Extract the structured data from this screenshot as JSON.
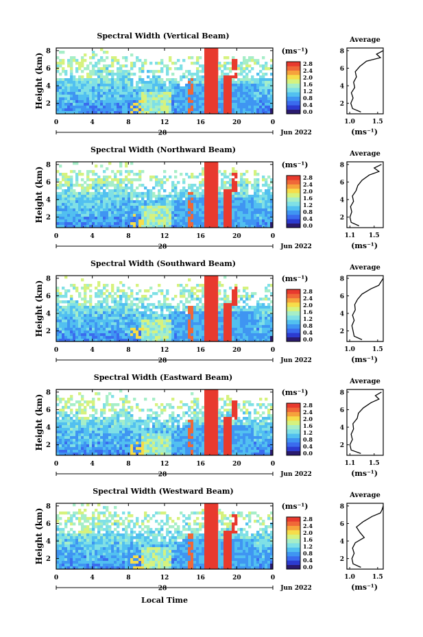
{
  "figure": {
    "xlabel": "Local Time",
    "date_label": "Jun 2022",
    "day_label": "28",
    "cbar_unit": "(ms⁻¹)",
    "avg_title": "Average",
    "avg_unit": "(ms⁻¹)",
    "height_label": "Height (km)"
  },
  "palette": [
    "#2a1a6e",
    "#2c3bd0",
    "#3a6bee",
    "#3f95f2",
    "#52c0f0",
    "#7fe0e6",
    "#a6eec8",
    "#d6f27e",
    "#f6dd4a",
    "#f6a23c",
    "#f06838",
    "#e83a2e"
  ],
  "chart_data": [
    {
      "type": "heatmap",
      "title": "Spectral Width (Vertical Beam)",
      "x_ticks": [
        "0",
        "4",
        "8",
        "12",
        "16",
        "20",
        "0"
      ],
      "y_ticks": [
        "2",
        "4",
        "6",
        "8"
      ],
      "xlim": [
        0,
        24
      ],
      "ylim": [
        0.8,
        8.3
      ],
      "colorbar_ticks": [
        "2.8",
        "2.4",
        "2.0",
        "1.6",
        "1.2",
        "0.8",
        "0.4",
        "0.0"
      ],
      "colorbar_range": [
        0.0,
        2.8
      ],
      "average_profile": {
        "title": "Average",
        "x_ticks": [
          "1.0",
          "1.5"
        ],
        "xlim": [
          0.95,
          1.6
        ],
        "height": [
          1.0,
          1.4,
          2.0,
          2.6,
          3.2,
          3.8,
          4.4,
          5.0,
          5.6,
          6.2,
          6.8,
          7.2,
          7.6,
          8.0
        ],
        "width": [
          1.2,
          1.05,
          1.02,
          1.06,
          1.03,
          1.09,
          1.07,
          1.12,
          1.1,
          1.18,
          1.3,
          1.55,
          1.48,
          1.6
        ]
      }
    },
    {
      "type": "heatmap",
      "title": "Spectral Width (Northward Beam)",
      "x_ticks": [
        "0",
        "4",
        "8",
        "12",
        "16",
        "20",
        "0"
      ],
      "y_ticks": [
        "2",
        "4",
        "6",
        "8"
      ],
      "xlim": [
        0,
        24
      ],
      "ylim": [
        0.8,
        8.3
      ],
      "colorbar_ticks": [
        "2.8",
        "2.4",
        "2.0",
        "1.6",
        "1.2",
        "0.8",
        "0.4",
        "0.0"
      ],
      "colorbar_range": [
        0.0,
        2.8
      ],
      "average_profile": {
        "title": "Average",
        "x_ticks": [
          "1.1",
          "1.5"
        ],
        "xlim": [
          1.05,
          1.65
        ],
        "height": [
          1.0,
          1.4,
          2.0,
          2.6,
          3.2,
          3.8,
          4.4,
          5.0,
          5.6,
          6.2,
          6.8,
          7.2,
          7.6,
          8.0
        ],
        "width": [
          1.25,
          1.12,
          1.1,
          1.13,
          1.11,
          1.16,
          1.14,
          1.2,
          1.23,
          1.3,
          1.42,
          1.58,
          1.5,
          1.62
        ]
      }
    },
    {
      "type": "heatmap",
      "title": "Spectral Width (Southward Beam)",
      "x_ticks": [
        "0",
        "4",
        "8",
        "12",
        "16",
        "20",
        "0"
      ],
      "y_ticks": [
        "2",
        "4",
        "6",
        "8"
      ],
      "xlim": [
        0,
        24
      ],
      "ylim": [
        0.8,
        8.3
      ],
      "colorbar_ticks": [
        "2.8",
        "2.4",
        "2.0",
        "1.6",
        "1.2",
        "0.8",
        "0.4",
        "0.0"
      ],
      "colorbar_range": [
        0.0,
        2.8
      ],
      "average_profile": {
        "title": "Average",
        "x_ticks": [
          "1.0",
          "1.5"
        ],
        "xlim": [
          0.95,
          1.6
        ],
        "height": [
          1.0,
          1.4,
          2.0,
          2.6,
          3.2,
          3.8,
          4.4,
          5.0,
          5.6,
          6.2,
          6.8,
          7.2,
          7.6,
          8.0
        ],
        "width": [
          1.22,
          1.08,
          1.06,
          1.04,
          1.08,
          1.05,
          1.1,
          1.09,
          1.14,
          1.22,
          1.38,
          1.52,
          1.56,
          1.6
        ]
      }
    },
    {
      "type": "heatmap",
      "title": "Spectral Width (Eastward Beam)",
      "x_ticks": [
        "0",
        "4",
        "8",
        "12",
        "16",
        "20",
        "0"
      ],
      "y_ticks": [
        "2",
        "4",
        "6",
        "8"
      ],
      "xlim": [
        0,
        24
      ],
      "ylim": [
        0.8,
        8.3
      ],
      "colorbar_ticks": [
        "2.8",
        "2.4",
        "2.0",
        "1.6",
        "1.2",
        "0.8",
        "0.4",
        "0.0"
      ],
      "colorbar_range": [
        0.0,
        2.8
      ],
      "average_profile": {
        "title": "Average",
        "x_ticks": [
          "1.1",
          "1.5"
        ],
        "xlim": [
          1.05,
          1.65
        ],
        "height": [
          1.0,
          1.4,
          2.0,
          2.6,
          3.2,
          3.8,
          4.4,
          5.0,
          5.6,
          6.2,
          6.8,
          7.2,
          7.6,
          8.0
        ],
        "width": [
          1.28,
          1.12,
          1.1,
          1.14,
          1.12,
          1.16,
          1.15,
          1.22,
          1.24,
          1.32,
          1.45,
          1.58,
          1.52,
          1.62
        ]
      }
    },
    {
      "type": "heatmap",
      "title": "Spectral Width (Westward Beam)",
      "x_ticks": [
        "0",
        "4",
        "8",
        "12",
        "16",
        "20",
        "0"
      ],
      "y_ticks": [
        "2",
        "4",
        "6",
        "8"
      ],
      "xlim": [
        0,
        24
      ],
      "ylim": [
        0.8,
        8.3
      ],
      "colorbar_ticks": [
        "2.8",
        "2.4",
        "2.0",
        "1.6",
        "1.2",
        "0.8",
        "0.4",
        "0.0"
      ],
      "colorbar_range": [
        0.0,
        2.8
      ],
      "average_profile": {
        "title": "Average",
        "x_ticks": [
          "1.0",
          "1.5"
        ],
        "xlim": [
          0.95,
          1.6
        ],
        "height": [
          1.0,
          1.4,
          2.0,
          2.6,
          3.2,
          3.8,
          4.4,
          5.0,
          5.6,
          6.2,
          6.8,
          7.2,
          7.6,
          8.0
        ],
        "width": [
          1.2,
          1.06,
          1.04,
          1.08,
          1.05,
          1.1,
          1.26,
          1.18,
          1.12,
          1.24,
          1.4,
          1.55,
          1.58,
          1.6
        ]
      }
    }
  ]
}
